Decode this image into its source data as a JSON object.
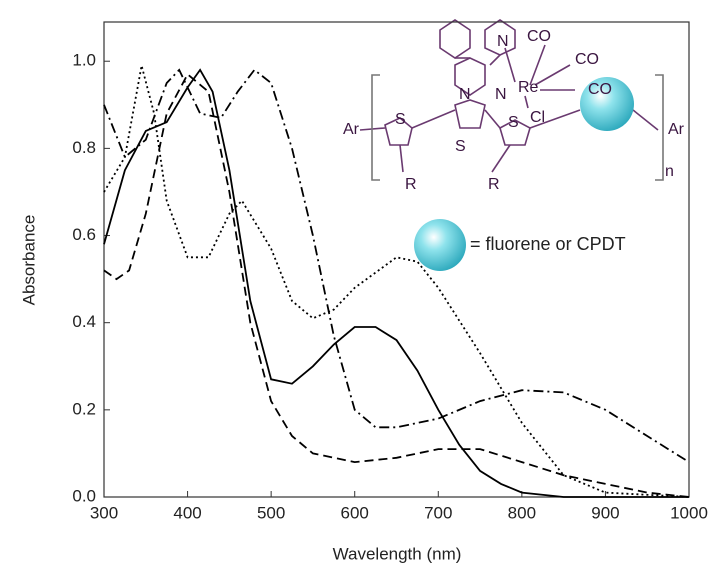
{
  "chart_data": {
    "type": "line",
    "x_label": "Wavelength (nm)",
    "y_label": "Absorbance",
    "xlim": [
      300,
      1000
    ],
    "ylim": [
      0,
      1.09
    ],
    "xticks": [
      300,
      400,
      500,
      600,
      700,
      800,
      900,
      1000
    ],
    "yticks": [
      {
        "value": 0,
        "label": "0.0"
      },
      0.2,
      0.4,
      0.6,
      0.8,
      {
        "value": 1,
        "label": "1.0"
      }
    ],
    "series": [
      {
        "color": "#000000",
        "dash": "solid",
        "x": [
          300,
          325,
          350,
          375,
          400,
          415,
          430,
          450,
          475,
          500,
          525,
          550,
          575,
          600,
          625,
          650,
          675,
          700,
          725,
          750,
          775,
          800,
          850,
          900,
          1000
        ],
        "values": [
          0.58,
          0.75,
          0.84,
          0.86,
          0.94,
          0.98,
          0.93,
          0.75,
          0.45,
          0.27,
          0.26,
          0.3,
          0.35,
          0.39,
          0.39,
          0.36,
          0.29,
          0.2,
          0.12,
          0.06,
          0.03,
          0.01,
          0,
          0,
          0
        ]
      },
      {
        "color": "#000000",
        "dash": "dashed",
        "x": [
          300,
          315,
          330,
          350,
          375,
          400,
          425,
          450,
          475,
          500,
          525,
          550,
          600,
          650,
          700,
          750,
          800,
          850,
          900,
          950,
          1000
        ],
        "values": [
          0.52,
          0.5,
          0.52,
          0.65,
          0.88,
          0.97,
          0.93,
          0.7,
          0.4,
          0.22,
          0.14,
          0.1,
          0.08,
          0.09,
          0.11,
          0.11,
          0.08,
          0.05,
          0.03,
          0.01,
          0
        ]
      },
      {
        "color": "#000000",
        "dash": "dotted",
        "x": [
          300,
          325,
          345,
          360,
          375,
          400,
          425,
          450,
          465,
          500,
          525,
          550,
          575,
          600,
          650,
          675,
          700,
          750,
          800,
          850,
          900,
          1000
        ],
        "values": [
          0.7,
          0.78,
          0.99,
          0.88,
          0.68,
          0.55,
          0.55,
          0.65,
          0.68,
          0.57,
          0.45,
          0.41,
          0.43,
          0.48,
          0.55,
          0.54,
          0.48,
          0.33,
          0.17,
          0.05,
          0.01,
          0
        ]
      },
      {
        "color": "#000000",
        "dash": "dashdot",
        "x": [
          300,
          325,
          350,
          375,
          390,
          415,
          440,
          460,
          480,
          500,
          525,
          550,
          575,
          600,
          625,
          650,
          700,
          750,
          800,
          850,
          900,
          950,
          1000
        ],
        "values": [
          0.9,
          0.78,
          0.82,
          0.95,
          0.98,
          0.88,
          0.87,
          0.93,
          0.98,
          0.95,
          0.8,
          0.6,
          0.37,
          0.2,
          0.16,
          0.16,
          0.18,
          0.22,
          0.245,
          0.24,
          0.2,
          0.14,
          0.08
        ]
      }
    ],
    "structure_labels": [
      "N",
      "CO",
      "CO",
      "N",
      "N",
      "Re",
      "CO",
      "Ar",
      "S",
      "S",
      "S",
      "Cl",
      "Ar",
      "R",
      "R",
      "n"
    ],
    "structure_note": "= fluorene or CPDT"
  }
}
